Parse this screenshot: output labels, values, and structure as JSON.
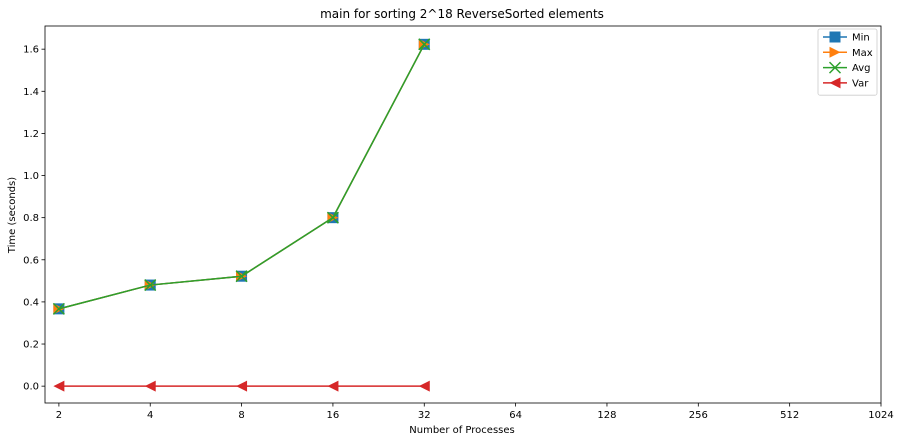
{
  "chart_data": {
    "type": "line",
    "title": "main for sorting 2^18 ReverseSorted elements",
    "xlabel": "Number of Processes",
    "ylabel": "Time (seconds)",
    "x_scale": "log2",
    "xticks": [
      "2",
      "4",
      "8",
      "16",
      "32",
      "64",
      "128",
      "256",
      "512",
      "1024"
    ],
    "yticks": [
      "0.0",
      "0.2",
      "0.4",
      "0.6",
      "0.8",
      "1.0",
      "1.2",
      "1.4",
      "1.6"
    ],
    "ylim": [
      -0.08,
      1.71
    ],
    "xlim": [
      1.8,
      1024
    ],
    "x": [
      2,
      4,
      8,
      16,
      32
    ],
    "series": [
      {
        "name": "Min",
        "values": [
          0.367,
          0.48,
          0.522,
          0.8,
          1.623
        ],
        "color": "#1f77b4",
        "marker": "square"
      },
      {
        "name": "Max",
        "values": [
          0.367,
          0.48,
          0.522,
          0.8,
          1.623
        ],
        "color": "#ff7f0e",
        "marker": "triangle-right"
      },
      {
        "name": "Avg",
        "values": [
          0.367,
          0.48,
          0.522,
          0.8,
          1.623
        ],
        "color": "#2ca02c",
        "marker": "x"
      },
      {
        "name": "Var",
        "values": [
          0.0,
          0.0,
          0.0,
          0.0,
          0.0
        ],
        "color": "#d62728",
        "marker": "triangle-left"
      }
    ],
    "legend_position": "top-right",
    "grid": false
  }
}
